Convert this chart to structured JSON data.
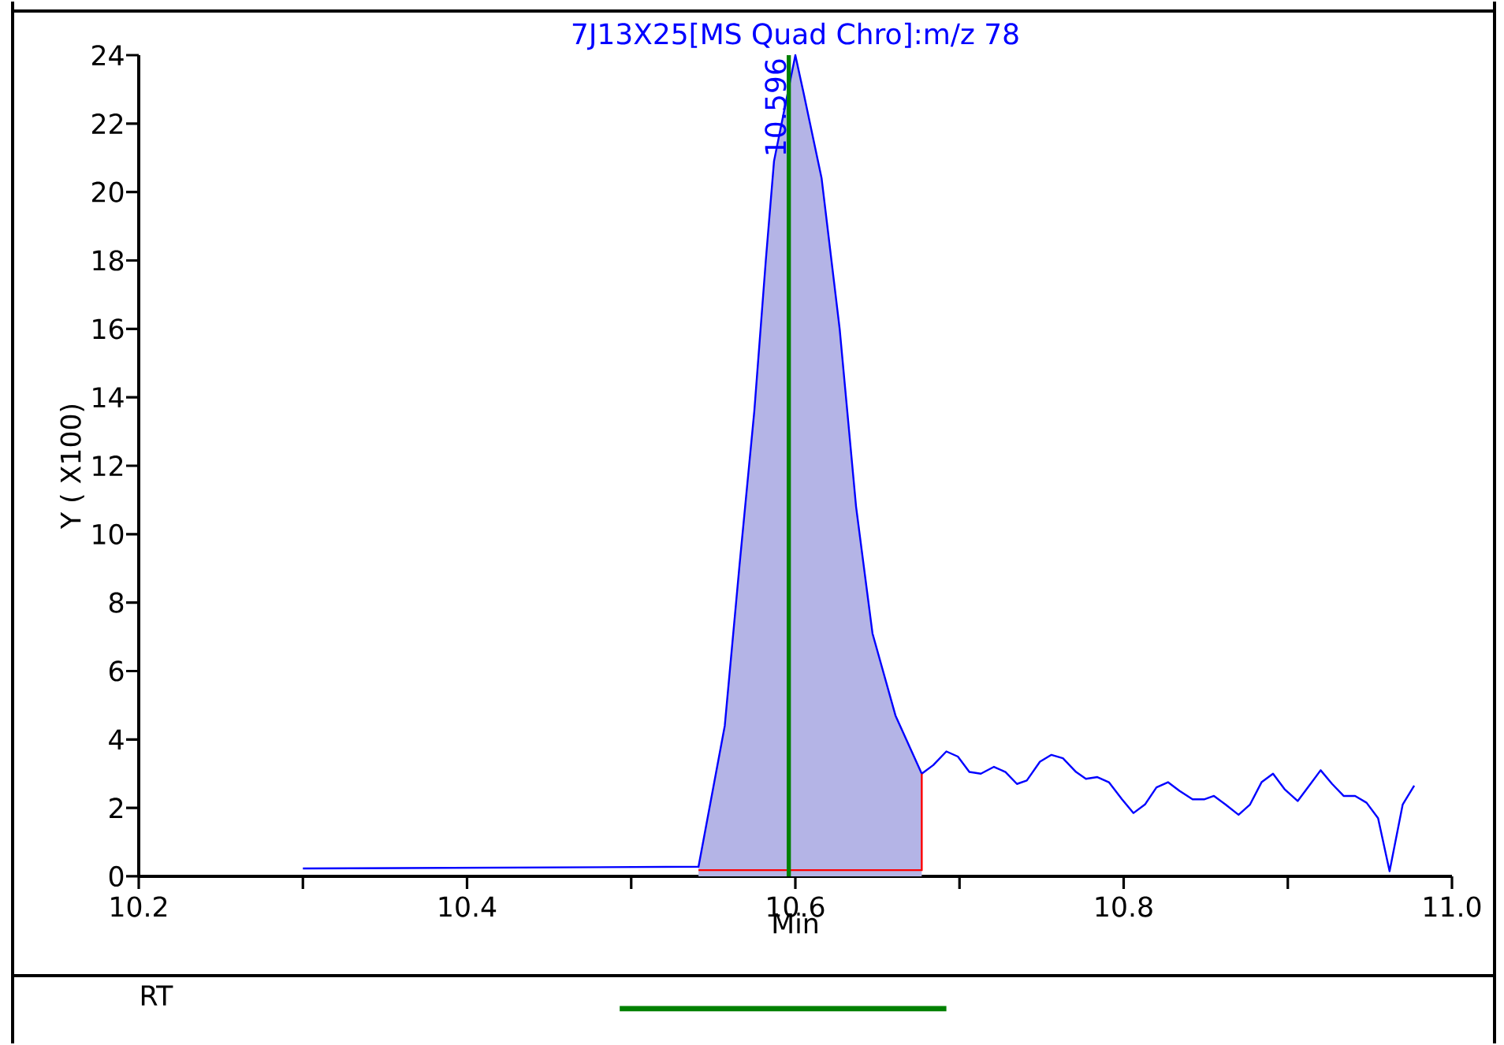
{
  "chart_data": [
    {
      "type": "line",
      "title": "7J13X25[MS Quad Chro]:m/z 78",
      "xlabel": "Min",
      "ylabel": "Y ( X100)",
      "series": [
        {
          "type": "area",
          "color": "#b4b4e6",
          "x": [
            10.541,
            10.557,
            10.566,
            10.575,
            10.582,
            10.587,
            10.6,
            10.605,
            10.616,
            10.627,
            10.637,
            10.647,
            10.661,
            10.677
          ],
          "values": [
            0.28,
            4.4,
            9.1,
            13.6,
            18.0,
            20.9,
            24.0,
            22.9,
            20.4,
            16.0,
            10.8,
            7.1,
            4.7,
            3.0
          ]
        },
        {
          "type": "line",
          "color": "#0000ff",
          "x": [
            10.3,
            10.541,
            10.557,
            10.566,
            10.575,
            10.582,
            10.587,
            10.6,
            10.605,
            10.616,
            10.627,
            10.637,
            10.647,
            10.661,
            10.677,
            10.684,
            10.692,
            10.699,
            10.706,
            10.713,
            10.721,
            10.728,
            10.735,
            10.741,
            10.749,
            10.756,
            10.763,
            10.771,
            10.777,
            10.784,
            10.791,
            10.799,
            10.806,
            10.813,
            10.82,
            10.827,
            10.834,
            10.842,
            10.849,
            10.855,
            10.862,
            10.87,
            10.877,
            10.884,
            10.891,
            10.898,
            10.906,
            10.913,
            10.92,
            10.927,
            10.934,
            10.941,
            10.948,
            10.955,
            10.962,
            10.97,
            10.977
          ],
          "values": [
            0.23,
            0.28,
            4.4,
            9.1,
            13.6,
            18.0,
            20.9,
            24.0,
            22.9,
            20.4,
            16.0,
            10.8,
            7.1,
            4.7,
            3.0,
            3.25,
            3.65,
            3.5,
            3.05,
            3.0,
            3.2,
            3.05,
            2.7,
            2.8,
            3.35,
            3.55,
            3.45,
            3.05,
            2.85,
            2.9,
            2.75,
            2.25,
            1.85,
            2.1,
            2.6,
            2.75,
            2.5,
            2.25,
            2.25,
            2.35,
            2.1,
            1.8,
            2.1,
            2.75,
            3.0,
            2.55,
            2.2,
            2.65,
            3.1,
            2.7,
            2.35,
            2.35,
            2.15,
            1.7,
            0.15,
            2.1,
            2.65
          ]
        },
        {
          "type": "line",
          "color": "#ff0000",
          "x": [
            10.541,
            10.677,
            10.677
          ],
          "values": [
            0.18,
            0.18,
            3.0
          ]
        }
      ],
      "ref_lines": [
        {
          "axis": "x",
          "value": 10.596,
          "label": "10.596",
          "color": "#008000"
        }
      ],
      "xlim": [
        10.2,
        11.0
      ],
      "ylim": [
        0,
        24
      ],
      "xticks": [
        10.2,
        {
          "value": 10.3,
          "label": null
        },
        10.4,
        {
          "value": 10.5,
          "label": null
        },
        10.6,
        {
          "value": 10.7,
          "label": null
        },
        10.8,
        {
          "value": 10.9,
          "label": null
        },
        {
          "value": 11.0,
          "label": "11.0"
        }
      ],
      "yticks": [
        0,
        2,
        4,
        6,
        8,
        10,
        12,
        14,
        16,
        18,
        20,
        22,
        24
      ]
    },
    {
      "type": "bar",
      "orientation": "horizontal",
      "categories": [
        "RT"
      ],
      "base": [
        10.493
      ],
      "values": [
        0.199
      ],
      "color": "#008000",
      "xlim": [
        10.2,
        11.0
      ],
      "tick_labels": "y"
    }
  ]
}
